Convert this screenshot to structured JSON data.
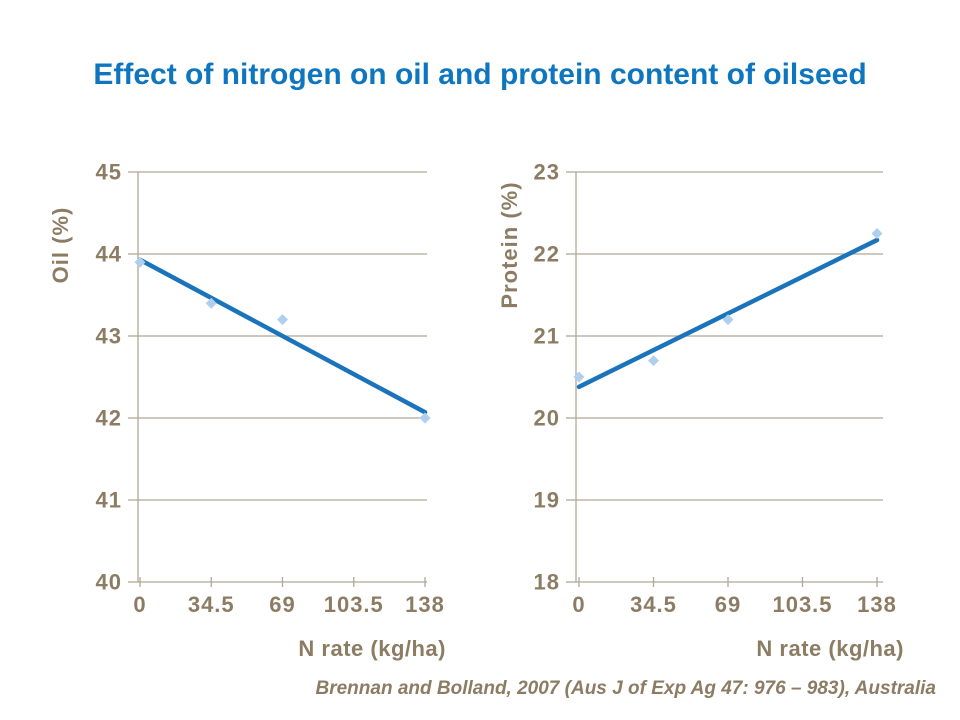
{
  "title": "Effect of nitrogen on oil and protein content of oilseed",
  "citation": "Brennan and Bolland, 2007 (Aus J of Exp Ag 47: 976 – 983), Australia",
  "colors": {
    "title_blue": "#0E76BE",
    "axis_text_brown": "#8C7C63",
    "grid_line": "#B2A795",
    "trend_line_blue": "#1B74BB",
    "marker_light_blue": "#AED0EE"
  },
  "chart_data": [
    {
      "type": "scatter",
      "name": "oil",
      "title": "",
      "xlabel": "N rate (kg/ha)",
      "ylabel": "Oil (%)",
      "xlim": [
        0,
        138
      ],
      "ylim": [
        40,
        45
      ],
      "xticks": [
        0,
        34.5,
        69,
        103.5,
        138
      ],
      "yticks": [
        40,
        41,
        42,
        43,
        44,
        45
      ],
      "grid": true,
      "legend": "none",
      "points": {
        "x": [
          0,
          34.5,
          69,
          138
        ],
        "y": [
          43.9,
          43.4,
          43.2,
          42.0
        ]
      },
      "trendline": {
        "x": [
          0,
          138
        ],
        "y": [
          43.93,
          42.07
        ]
      }
    },
    {
      "type": "scatter",
      "name": "protein",
      "title": "",
      "xlabel": "N rate (kg/ha)",
      "ylabel": "Protein  (%)",
      "xlim": [
        0,
        138
      ],
      "ylim": [
        18,
        23
      ],
      "xticks": [
        0,
        34.5,
        69,
        103.5,
        138
      ],
      "yticks": [
        18,
        19,
        20,
        21,
        22,
        23
      ],
      "grid": true,
      "legend": "none",
      "points": {
        "x": [
          0,
          34.5,
          69,
          138
        ],
        "y": [
          20.5,
          20.7,
          21.2,
          22.25
        ]
      },
      "trendline": {
        "x": [
          0,
          138
        ],
        "y": [
          20.38,
          22.17
        ]
      }
    }
  ]
}
